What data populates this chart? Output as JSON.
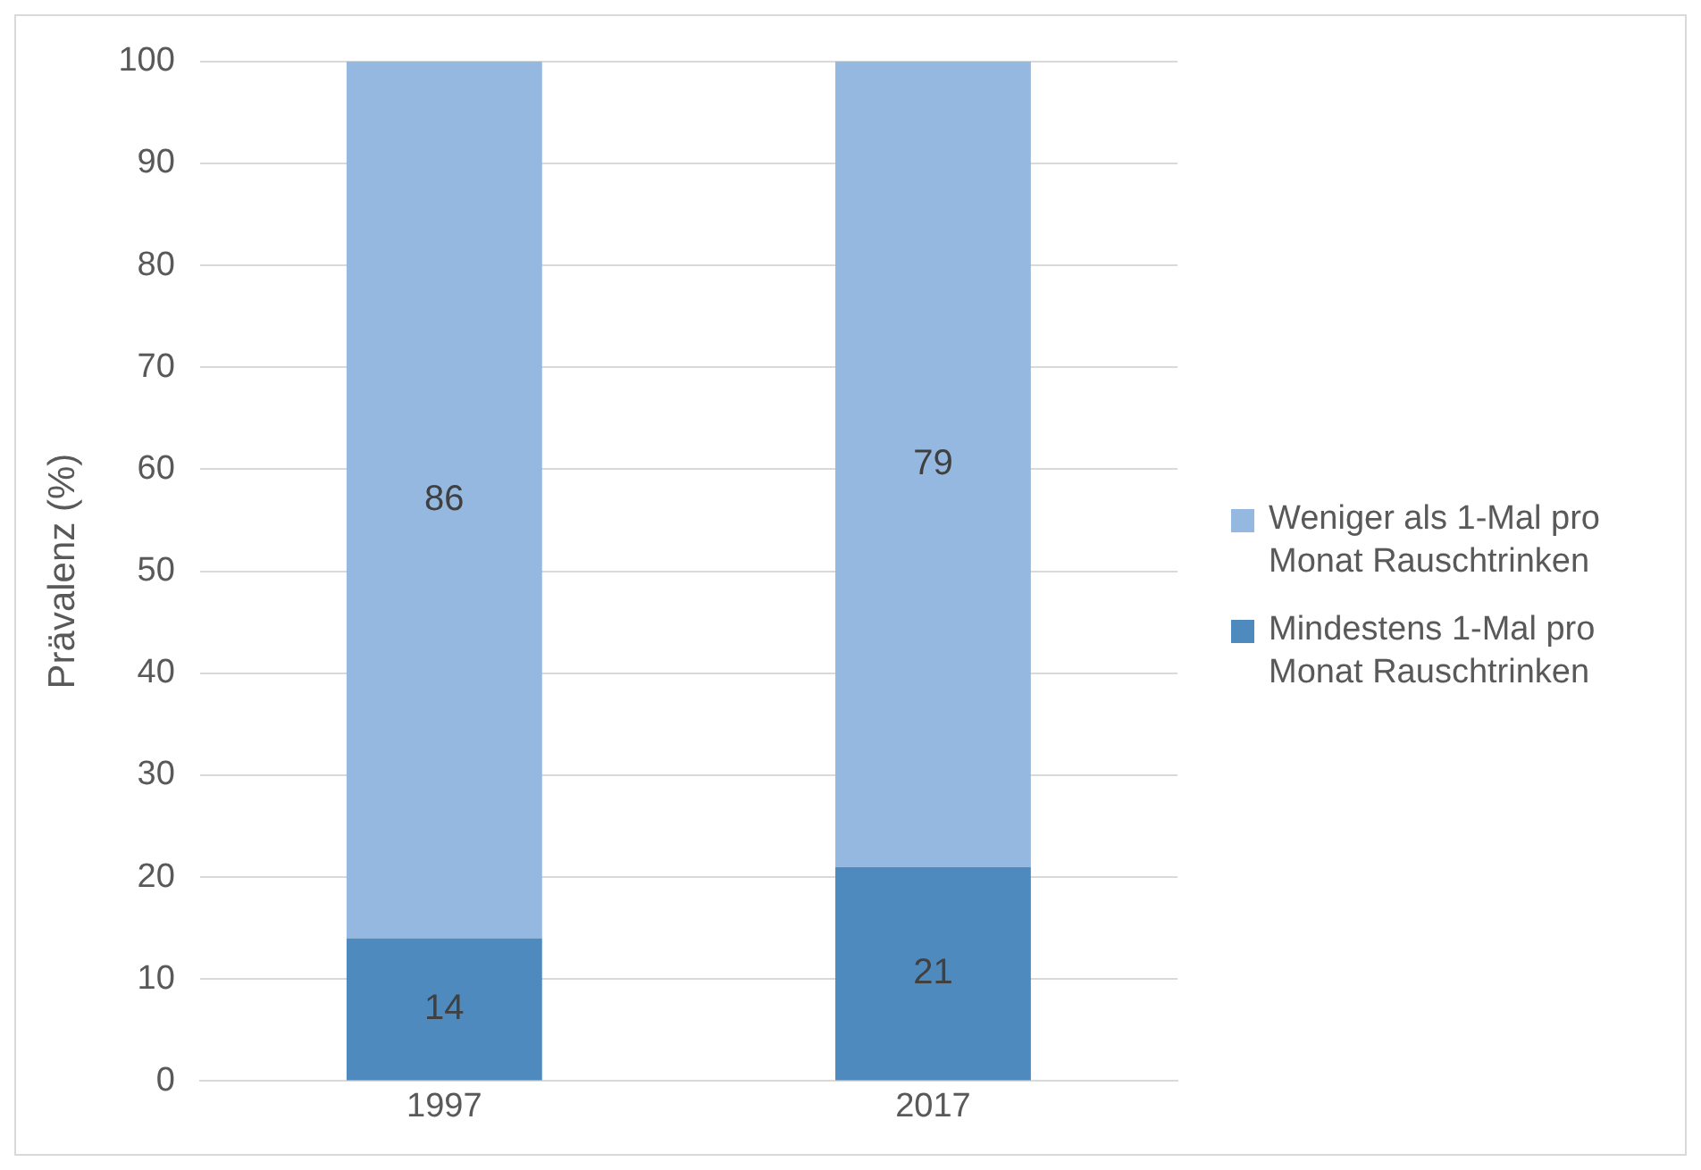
{
  "chart_data": {
    "type": "bar",
    "ylabel": "Prävalenz (%)",
    "categories": [
      "1997",
      "2017"
    ],
    "stacked": true,
    "series": [
      {
        "name": "Mindestens 1-Mal pro Monat Rauschtrinken",
        "color": "#4f8abe",
        "values": [
          14,
          21
        ]
      },
      {
        "name": "Weniger als 1-Mal pro Monat Rauschtrinken",
        "color": "#95b8e0",
        "values": [
          86,
          79
        ]
      }
    ],
    "ylim": [
      0,
      100
    ],
    "yticks": [
      0,
      10,
      20,
      30,
      40,
      50,
      60,
      70,
      80,
      90,
      100
    ],
    "grid": "y",
    "legend": "right",
    "data_labels": true
  }
}
